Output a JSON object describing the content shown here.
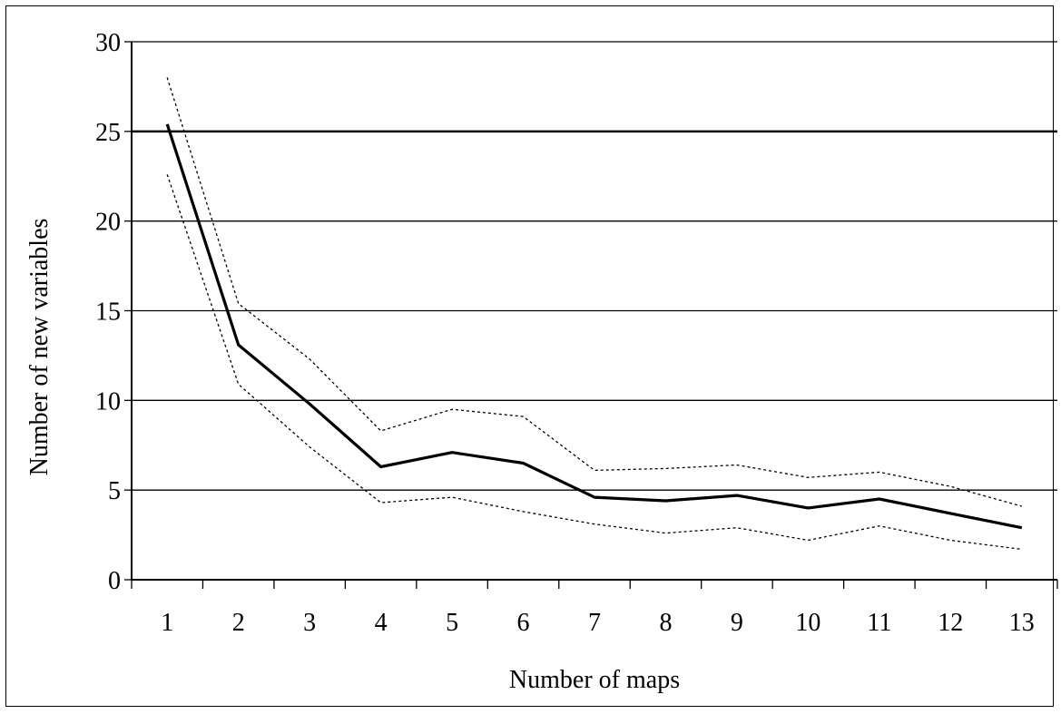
{
  "chart_data": {
    "type": "line",
    "title": "",
    "xlabel": "Number of maps",
    "ylabel": "Number of new variables",
    "categories": [
      "1",
      "2",
      "3",
      "4",
      "5",
      "6",
      "7",
      "8",
      "9",
      "10",
      "11",
      "12",
      "13"
    ],
    "x": [
      1,
      2,
      3,
      4,
      5,
      6,
      7,
      8,
      9,
      10,
      11,
      12,
      13
    ],
    "ylim": [
      0,
      30
    ],
    "yticks": [
      0,
      5,
      10,
      15,
      20,
      25,
      30
    ],
    "grid": "horizontal",
    "legend": "none",
    "series": [
      {
        "style": "solid-thick",
        "color": "#000000",
        "values": [
          25.4,
          13.1,
          9.8,
          6.3,
          7.1,
          6.5,
          4.6,
          4.4,
          4.7,
          4.0,
          4.5,
          3.7,
          2.9
        ]
      },
      {
        "style": "dotted-upper",
        "color": "#000000",
        "values": [
          28.0,
          15.4,
          12.3,
          8.3,
          9.5,
          9.1,
          6.1,
          6.2,
          6.4,
          5.7,
          6.0,
          5.2,
          4.1
        ]
      },
      {
        "style": "dotted-lower",
        "color": "#000000",
        "values": [
          22.6,
          10.9,
          7.4,
          4.3,
          4.6,
          3.8,
          3.1,
          2.6,
          2.9,
          2.2,
          3.0,
          2.2,
          1.7
        ]
      }
    ]
  }
}
